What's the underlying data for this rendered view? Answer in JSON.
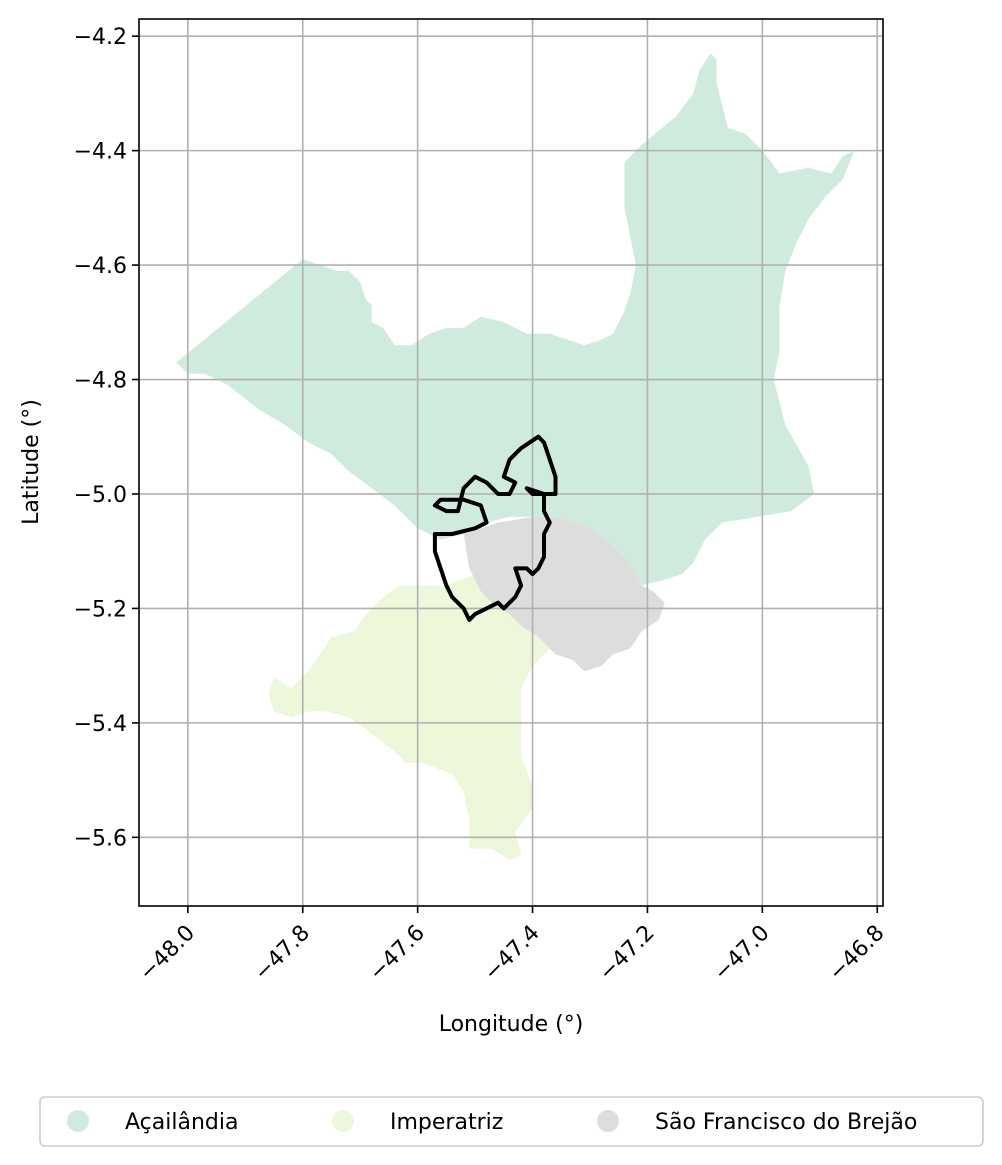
{
  "chart_data": {
    "type": "map",
    "xlabel": "Longitude (°)",
    "ylabel": "Latitude (°)",
    "xlim": [
      -48.085,
      -46.79
    ],
    "ylim": [
      -5.72,
      -4.17
    ],
    "xticks": [
      -48.0,
      -47.8,
      -47.6,
      -47.4,
      -47.2,
      -47.0,
      -46.8
    ],
    "xtick_labels": [
      "−48.0",
      "−47.8",
      "−47.6",
      "−47.4",
      "−47.2",
      "−47.0",
      "−46.8"
    ],
    "yticks": [
      -4.2,
      -4.4,
      -4.6,
      -4.8,
      -5.0,
      -5.2,
      -5.4,
      -5.6
    ],
    "ytick_labels": [
      "−4.2",
      "−4.4",
      "−4.6",
      "−4.8",
      "−5.0",
      "−5.2",
      "−5.4",
      "−5.6"
    ],
    "grid": true,
    "legend_position": "bottom-center",
    "regions": [
      {
        "name": "Açailândia",
        "color": "#cfebde",
        "boundary": [
          [
            -48.02,
            -4.77
          ],
          [
            -47.8,
            -4.59
          ],
          [
            -47.77,
            -4.6
          ],
          [
            -47.74,
            -4.61
          ],
          [
            -47.72,
            -4.61
          ],
          [
            -47.7,
            -4.63
          ],
          [
            -47.69,
            -4.66
          ],
          [
            -47.68,
            -4.67
          ],
          [
            -47.68,
            -4.7
          ],
          [
            -47.66,
            -4.71
          ],
          [
            -47.64,
            -4.74
          ],
          [
            -47.61,
            -4.74
          ],
          [
            -47.58,
            -4.72
          ],
          [
            -47.55,
            -4.71
          ],
          [
            -47.52,
            -4.71
          ],
          [
            -47.49,
            -4.69
          ],
          [
            -47.45,
            -4.7
          ],
          [
            -47.41,
            -4.72
          ],
          [
            -47.37,
            -4.72
          ],
          [
            -47.34,
            -4.73
          ],
          [
            -47.31,
            -4.74
          ],
          [
            -47.28,
            -4.73
          ],
          [
            -47.26,
            -4.72
          ],
          [
            -47.24,
            -4.68
          ],
          [
            -47.23,
            -4.65
          ],
          [
            -47.22,
            -4.6
          ],
          [
            -47.23,
            -4.55
          ],
          [
            -47.24,
            -4.5
          ],
          [
            -47.24,
            -4.42
          ],
          [
            -47.21,
            -4.39
          ],
          [
            -47.15,
            -4.34
          ],
          [
            -47.12,
            -4.3
          ],
          [
            -47.11,
            -4.26
          ],
          [
            -47.09,
            -4.23
          ],
          [
            -47.08,
            -4.24
          ],
          [
            -47.08,
            -4.28
          ],
          [
            -47.07,
            -4.32
          ],
          [
            -47.06,
            -4.36
          ],
          [
            -47.03,
            -4.37
          ],
          [
            -47.0,
            -4.4
          ],
          [
            -46.97,
            -4.44
          ],
          [
            -46.92,
            -4.43
          ],
          [
            -46.88,
            -4.44
          ],
          [
            -46.86,
            -4.41
          ],
          [
            -46.84,
            -4.4
          ],
          [
            -46.86,
            -4.45
          ],
          [
            -46.89,
            -4.48
          ],
          [
            -46.92,
            -4.52
          ],
          [
            -46.94,
            -4.56
          ],
          [
            -46.96,
            -4.61
          ],
          [
            -46.97,
            -4.67
          ],
          [
            -46.97,
            -4.75
          ],
          [
            -46.98,
            -4.8
          ],
          [
            -46.96,
            -4.88
          ],
          [
            -46.92,
            -4.95
          ],
          [
            -46.91,
            -5.0
          ],
          [
            -46.95,
            -5.03
          ],
          [
            -47.01,
            -5.04
          ],
          [
            -47.07,
            -5.05
          ],
          [
            -47.1,
            -5.08
          ],
          [
            -47.12,
            -5.12
          ],
          [
            -47.14,
            -5.14
          ],
          [
            -47.17,
            -5.15
          ],
          [
            -47.21,
            -5.16
          ],
          [
            -47.24,
            -5.11
          ],
          [
            -47.27,
            -5.08
          ],
          [
            -47.3,
            -5.06
          ],
          [
            -47.33,
            -5.05
          ],
          [
            -47.36,
            -5.04
          ],
          [
            -47.4,
            -5.04
          ],
          [
            -47.44,
            -5.04
          ],
          [
            -47.48,
            -5.05
          ],
          [
            -47.52,
            -5.07
          ],
          [
            -47.56,
            -5.08
          ],
          [
            -47.6,
            -5.06
          ],
          [
            -47.64,
            -5.02
          ],
          [
            -47.68,
            -4.99
          ],
          [
            -47.72,
            -4.96
          ],
          [
            -47.75,
            -4.93
          ],
          [
            -47.79,
            -4.91
          ],
          [
            -47.83,
            -4.88
          ],
          [
            -47.88,
            -4.85
          ],
          [
            -47.93,
            -4.81
          ],
          [
            -47.97,
            -4.79
          ],
          [
            -48.0,
            -4.79
          ]
        ]
      },
      {
        "name": "Imperatriz",
        "color": "#edf8db",
        "boundary": [
          [
            -47.55,
            -5.16
          ],
          [
            -47.5,
            -5.14
          ],
          [
            -47.46,
            -5.17
          ],
          [
            -47.43,
            -5.21
          ],
          [
            -47.4,
            -5.23
          ],
          [
            -47.37,
            -5.27
          ],
          [
            -47.4,
            -5.3
          ],
          [
            -47.42,
            -5.34
          ],
          [
            -47.42,
            -5.4
          ],
          [
            -47.42,
            -5.46
          ],
          [
            -47.4,
            -5.51
          ],
          [
            -47.4,
            -5.55
          ],
          [
            -47.43,
            -5.59
          ],
          [
            -47.42,
            -5.63
          ],
          [
            -47.44,
            -5.64
          ],
          [
            -47.47,
            -5.62
          ],
          [
            -47.51,
            -5.62
          ],
          [
            -47.51,
            -5.57
          ],
          [
            -47.52,
            -5.52
          ],
          [
            -47.54,
            -5.49
          ],
          [
            -47.59,
            -5.47
          ],
          [
            -47.62,
            -5.47
          ],
          [
            -47.64,
            -5.45
          ],
          [
            -47.68,
            -5.42
          ],
          [
            -47.72,
            -5.39
          ],
          [
            -47.76,
            -5.38
          ],
          [
            -47.79,
            -5.38
          ],
          [
            -47.82,
            -5.39
          ],
          [
            -47.85,
            -5.38
          ],
          [
            -47.86,
            -5.35
          ],
          [
            -47.85,
            -5.32
          ],
          [
            -47.82,
            -5.34
          ],
          [
            -47.79,
            -5.31
          ],
          [
            -47.77,
            -5.28
          ],
          [
            -47.75,
            -5.25
          ],
          [
            -47.71,
            -5.24
          ],
          [
            -47.69,
            -5.21
          ],
          [
            -47.66,
            -5.18
          ],
          [
            -47.63,
            -5.16
          ],
          [
            -47.59,
            -5.16
          ]
        ]
      },
      {
        "name": "São Francisco do Brejão",
        "color": "#dddddd",
        "boundary": [
          [
            -47.52,
            -5.07
          ],
          [
            -47.46,
            -5.05
          ],
          [
            -47.4,
            -5.04
          ],
          [
            -47.36,
            -5.04
          ],
          [
            -47.33,
            -5.05
          ],
          [
            -47.3,
            -5.06
          ],
          [
            -47.27,
            -5.08
          ],
          [
            -47.24,
            -5.11
          ],
          [
            -47.21,
            -5.16
          ],
          [
            -47.19,
            -5.17
          ],
          [
            -47.17,
            -5.19
          ],
          [
            -47.18,
            -5.22
          ],
          [
            -47.21,
            -5.24
          ],
          [
            -47.23,
            -5.27
          ],
          [
            -47.26,
            -5.28
          ],
          [
            -47.28,
            -5.3
          ],
          [
            -47.31,
            -5.31
          ],
          [
            -47.33,
            -5.29
          ],
          [
            -47.36,
            -5.28
          ],
          [
            -47.37,
            -5.27
          ],
          [
            -47.39,
            -5.25
          ],
          [
            -47.42,
            -5.23
          ],
          [
            -47.44,
            -5.21
          ],
          [
            -47.47,
            -5.19
          ],
          [
            -47.49,
            -5.17
          ],
          [
            -47.51,
            -5.13
          ]
        ]
      }
    ],
    "outline": {
      "color": "#000000",
      "boundary": [
        [
          -47.51,
          -5.22
        ],
        [
          -47.52,
          -5.2
        ],
        [
          -47.54,
          -5.18
        ],
        [
          -47.55,
          -5.16
        ],
        [
          -47.56,
          -5.13
        ],
        [
          -47.57,
          -5.1
        ],
        [
          -47.57,
          -5.07
        ],
        [
          -47.54,
          -5.07
        ],
        [
          -47.5,
          -5.06
        ],
        [
          -47.48,
          -5.05
        ],
        [
          -47.49,
          -5.02
        ],
        [
          -47.52,
          -5.01
        ],
        [
          -47.54,
          -5.01
        ],
        [
          -47.56,
          -5.01
        ],
        [
          -47.57,
          -5.02
        ],
        [
          -47.55,
          -5.03
        ],
        [
          -47.53,
          -5.03
        ],
        [
          -47.52,
          -4.99
        ],
        [
          -47.5,
          -4.97
        ],
        [
          -47.48,
          -4.98
        ],
        [
          -47.46,
          -5.0
        ],
        [
          -47.44,
          -5.0
        ],
        [
          -47.43,
          -4.98
        ],
        [
          -47.45,
          -4.97
        ],
        [
          -47.44,
          -4.94
        ],
        [
          -47.42,
          -4.92
        ],
        [
          -47.39,
          -4.9
        ],
        [
          -47.38,
          -4.91
        ],
        [
          -47.37,
          -4.94
        ],
        [
          -47.36,
          -4.97
        ],
        [
          -47.36,
          -5.0
        ],
        [
          -47.38,
          -5.0
        ],
        [
          -47.4,
          -5.0
        ],
        [
          -47.41,
          -4.99
        ],
        [
          -47.38,
          -5.0
        ],
        [
          -47.38,
          -5.03
        ],
        [
          -47.37,
          -5.05
        ],
        [
          -47.38,
          -5.07
        ],
        [
          -47.38,
          -5.11
        ],
        [
          -47.39,
          -5.13
        ],
        [
          -47.4,
          -5.14
        ],
        [
          -47.41,
          -5.13
        ],
        [
          -47.43,
          -5.13
        ],
        [
          -47.42,
          -5.16
        ],
        [
          -47.43,
          -5.18
        ],
        [
          -47.45,
          -5.2
        ],
        [
          -47.46,
          -5.19
        ],
        [
          -47.48,
          -5.2
        ],
        [
          -47.5,
          -5.21
        ]
      ]
    },
    "legend": [
      {
        "label": "Açailândia",
        "color": "#cfebde"
      },
      {
        "label": "Imperatriz",
        "color": "#edf8db"
      },
      {
        "label": "São Francisco do Brejão",
        "color": "#dddddd"
      }
    ]
  }
}
